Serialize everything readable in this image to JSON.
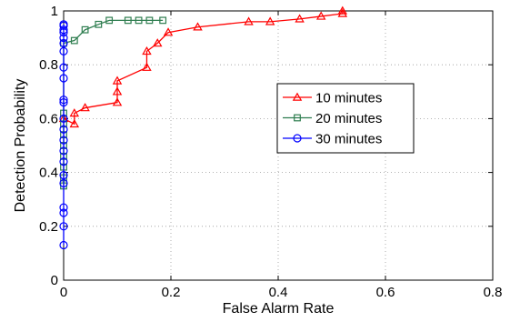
{
  "chart_data": {
    "type": "line",
    "xlabel": "False Alarm Rate",
    "ylabel": "Detection Probability",
    "xlim": [
      0,
      0.8
    ],
    "ylim": [
      0,
      1
    ],
    "xticks": [
      0,
      0.2,
      0.4,
      0.6,
      0.8
    ],
    "xtick_labels": [
      "0",
      "0.2",
      "0.4",
      "0.6",
      "0.8"
    ],
    "yticks": [
      0,
      0.2,
      0.4,
      0.6,
      0.8,
      1
    ],
    "ytick_labels": [
      "0",
      "0.2",
      "0.4",
      "0.6",
      "0.8",
      "1"
    ],
    "grid": true,
    "legend_position": "middle-right",
    "series": [
      {
        "name": "10 minutes",
        "color": "#ff0000",
        "marker": "triangle",
        "x": [
          0,
          0.02,
          0.02,
          0.04,
          0.1,
          0.1,
          0.1,
          0.155,
          0.155,
          0.175,
          0.195,
          0.25,
          0.345,
          0.385,
          0.44,
          0.48,
          0.52,
          0.52
        ],
        "y": [
          0.6,
          0.58,
          0.62,
          0.64,
          0.66,
          0.7,
          0.74,
          0.79,
          0.85,
          0.88,
          0.92,
          0.94,
          0.96,
          0.96,
          0.97,
          0.98,
          0.99,
          1.0
        ]
      },
      {
        "name": "20 minutes",
        "color": "#2e7d4f",
        "marker": "square",
        "x": [
          0,
          0,
          0,
          0,
          0,
          0,
          0,
          0,
          0,
          0.02,
          0.04,
          0.065,
          0.085,
          0.12,
          0.14,
          0.16,
          0.185
        ],
        "y": [
          0.35,
          0.38,
          0.42,
          0.46,
          0.5,
          0.54,
          0.58,
          0.62,
          0.88,
          0.89,
          0.93,
          0.95,
          0.965,
          0.965,
          0.965,
          0.965,
          0.965
        ]
      },
      {
        "name": "30 minutes",
        "color": "#0000ff",
        "marker": "circle",
        "x": [
          0,
          0,
          0,
          0,
          0,
          0,
          0,
          0,
          0,
          0,
          0,
          0,
          0,
          0,
          0,
          0,
          0,
          0,
          0,
          0,
          0,
          0
        ],
        "y": [
          0.13,
          0.2,
          0.25,
          0.27,
          0.36,
          0.39,
          0.44,
          0.48,
          0.52,
          0.56,
          0.6,
          0.66,
          0.67,
          0.75,
          0.79,
          0.85,
          0.88,
          0.9,
          0.92,
          0.93,
          0.945,
          0.95
        ]
      }
    ]
  }
}
